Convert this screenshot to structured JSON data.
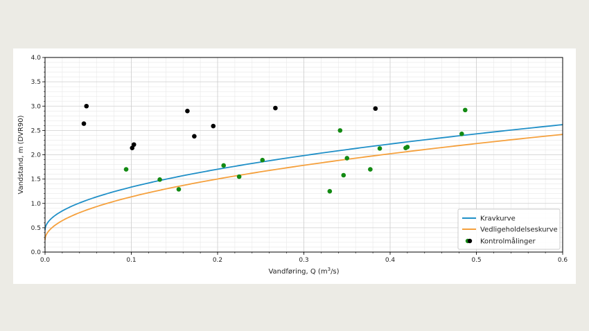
{
  "chart_data": {
    "type": "scatter",
    "title": "",
    "xlabel_prefix": "Vandføring, Q (m",
    "xlabel_sup": "3",
    "xlabel_suffix": "/s)",
    "ylabel": "Vandstand, m (DVR90)",
    "xlim": [
      0,
      0.6
    ],
    "ylim": [
      0,
      4.0
    ],
    "xticks": [
      0.0,
      0.1,
      0.2,
      0.3,
      0.4,
      0.5,
      0.6
    ],
    "xtick_labels": [
      "0.0",
      "0.1",
      "0.2",
      "0.3",
      "0.4",
      "0.5",
      "0.6"
    ],
    "yticks": [
      0.0,
      0.5,
      1.0,
      1.5,
      2.0,
      2.5,
      3.0,
      3.5,
      4.0
    ],
    "ytick_labels": [
      "0.0",
      "0.5",
      "1.0",
      "1.5",
      "2.0",
      "2.5",
      "3.0",
      "3.5",
      "4.0"
    ],
    "grid": true,
    "legend_position": "bottom-right",
    "curves": [
      {
        "name": "Kravkurve",
        "color": "#1f8fc7",
        "params": {
          "a": 0.45,
          "b": 2.8,
          "c": 0.5
        }
      },
      {
        "name": "Vedligeholdelseskurve",
        "color": "#f5a03c",
        "params": {
          "a": 0.25,
          "b": 2.8,
          "c": 0.5
        }
      }
    ],
    "measurements_name": "Kontrolmålinger",
    "points_above": {
      "color": "#000000",
      "x": [
        0.045,
        0.048,
        0.101,
        0.103,
        0.165,
        0.173,
        0.195,
        0.267,
        0.383
      ],
      "y": [
        2.64,
        3.0,
        2.14,
        2.21,
        2.9,
        2.38,
        2.59,
        2.96,
        2.95
      ]
    },
    "points_below": {
      "color": "#138a13",
      "x": [
        0.094,
        0.133,
        0.155,
        0.207,
        0.225,
        0.252,
        0.33,
        0.342,
        0.346,
        0.35,
        0.377,
        0.388,
        0.418,
        0.42,
        0.483,
        0.487
      ],
      "y": [
        1.7,
        1.49,
        1.29,
        1.78,
        1.55,
        1.89,
        1.25,
        2.5,
        1.58,
        1.93,
        1.7,
        2.13,
        2.14,
        2.16,
        2.43,
        2.92
      ]
    }
  }
}
